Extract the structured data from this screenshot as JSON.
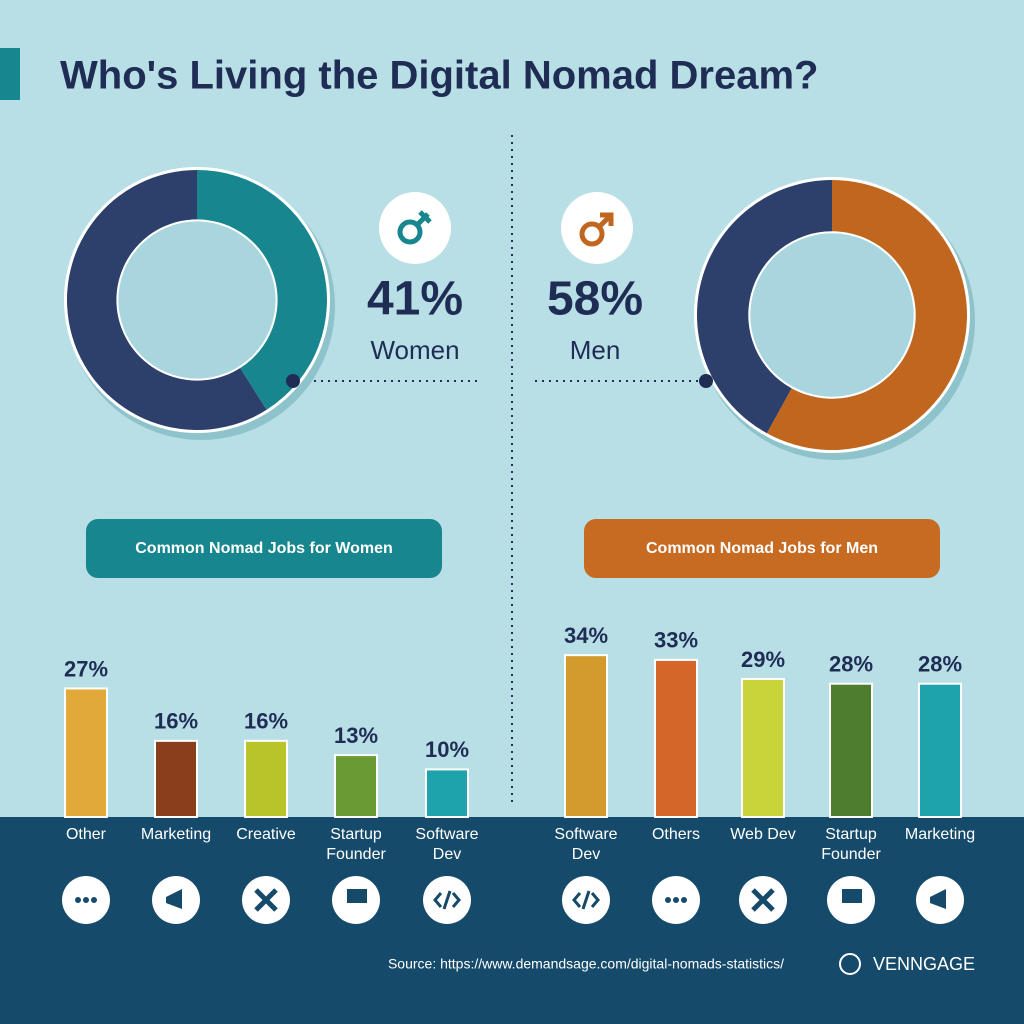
{
  "title": "Who's Living the Digital Nomad Dream?",
  "source": "Source: https://www.demandsage.com/digital-nomads-statistics/",
  "brand": "VENNGAGE",
  "chart_data": [
    {
      "type": "donut",
      "categories": [
        "Women"
      ],
      "values": [
        41
      ],
      "value_labels": [
        "41%"
      ],
      "color": "#17868e",
      "rest_color": "#2d3f6b"
    },
    {
      "type": "donut",
      "categories": [
        "Men"
      ],
      "values": [
        58
      ],
      "value_labels": [
        "58%"
      ],
      "color": "#c0661f",
      "rest_color": "#2d3f6b"
    },
    {
      "type": "bar",
      "title": "Common Nomad Jobs for Women",
      "title_color": "#17868e",
      "categories": [
        "Other",
        "Marketing",
        "Creative",
        "Startup Founder",
        "Software Dev"
      ],
      "values": [
        27,
        16,
        16,
        13,
        10
      ],
      "value_labels": [
        "27%",
        "16%",
        "16%",
        "13%",
        "10%"
      ],
      "colors": [
        "#e0a93a",
        "#8a3f1c",
        "#b8c42a",
        "#6a9a34",
        "#1ea3ad"
      ]
    },
    {
      "type": "bar",
      "title": "Common Nomad Jobs for Men",
      "title_color": "#c76a22",
      "categories": [
        "Software Dev",
        "Others",
        "Web Dev",
        "Startup Founder",
        "Marketing"
      ],
      "values": [
        34,
        33,
        29,
        28,
        28
      ],
      "value_labels": [
        "34%",
        "33%",
        "29%",
        "28%",
        "28%"
      ],
      "colors": [
        "#d39a2e",
        "#d4662a",
        "#c9d43a",
        "#4e7d2e",
        "#1ea3ad"
      ]
    }
  ]
}
